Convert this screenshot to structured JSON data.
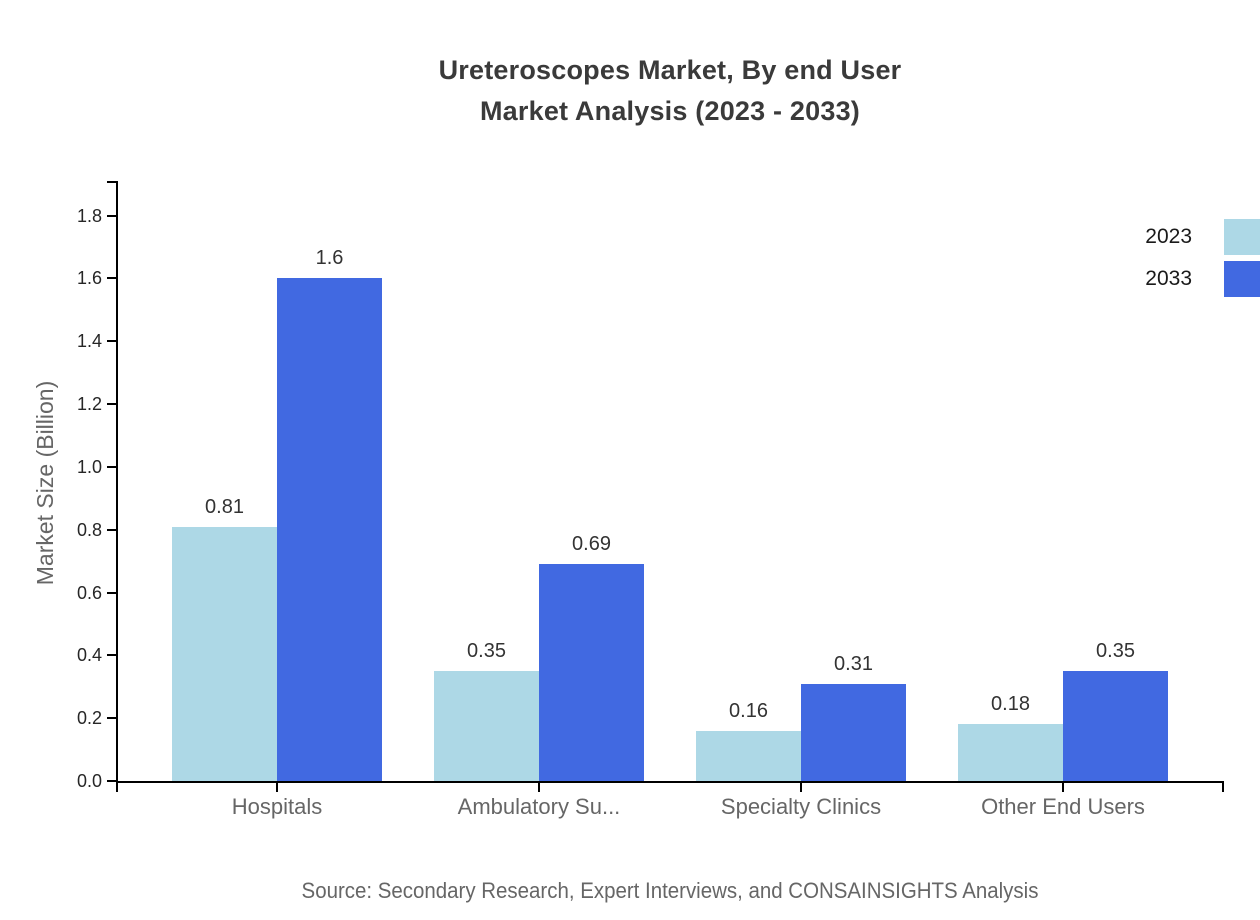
{
  "title": {
    "line1": "Ureteroscopes Market, By end User",
    "line2": "Market Analysis (2023 - 2033)"
  },
  "source": "Source: Secondary Research, Expert Interviews, and CONSAINSIGHTS Analysis",
  "chart_data": {
    "type": "bar",
    "title": "Ureteroscopes Market, By end User Market Analysis (2023 - 2033)",
    "categories": [
      "Hospitals",
      "Ambulatory Su...",
      "Specialty Clinics",
      "Other End Users"
    ],
    "series": [
      {
        "name": "2023",
        "color": "#ADD8E6",
        "values": [
          0.81,
          0.35,
          0.16,
          0.18
        ],
        "labels": [
          "0.81",
          "0.35",
          "0.16",
          "0.18"
        ]
      },
      {
        "name": "2033",
        "color": "#4169E1",
        "values": [
          1.6,
          0.69,
          0.31,
          0.35
        ],
        "labels": [
          "1.6",
          "0.69",
          "0.31",
          "0.35"
        ]
      }
    ],
    "xlabel": "",
    "ylabel": "Market Size (Billion)",
    "yticks": [
      "0.0",
      "0.2",
      "0.4",
      "0.6",
      "0.8",
      "1.0",
      "1.2",
      "1.4",
      "1.6",
      "1.8"
    ],
    "ylim": [
      0,
      1.91
    ],
    "grid": false,
    "legend_position": "top-right",
    "axis_color": "#000000"
  }
}
